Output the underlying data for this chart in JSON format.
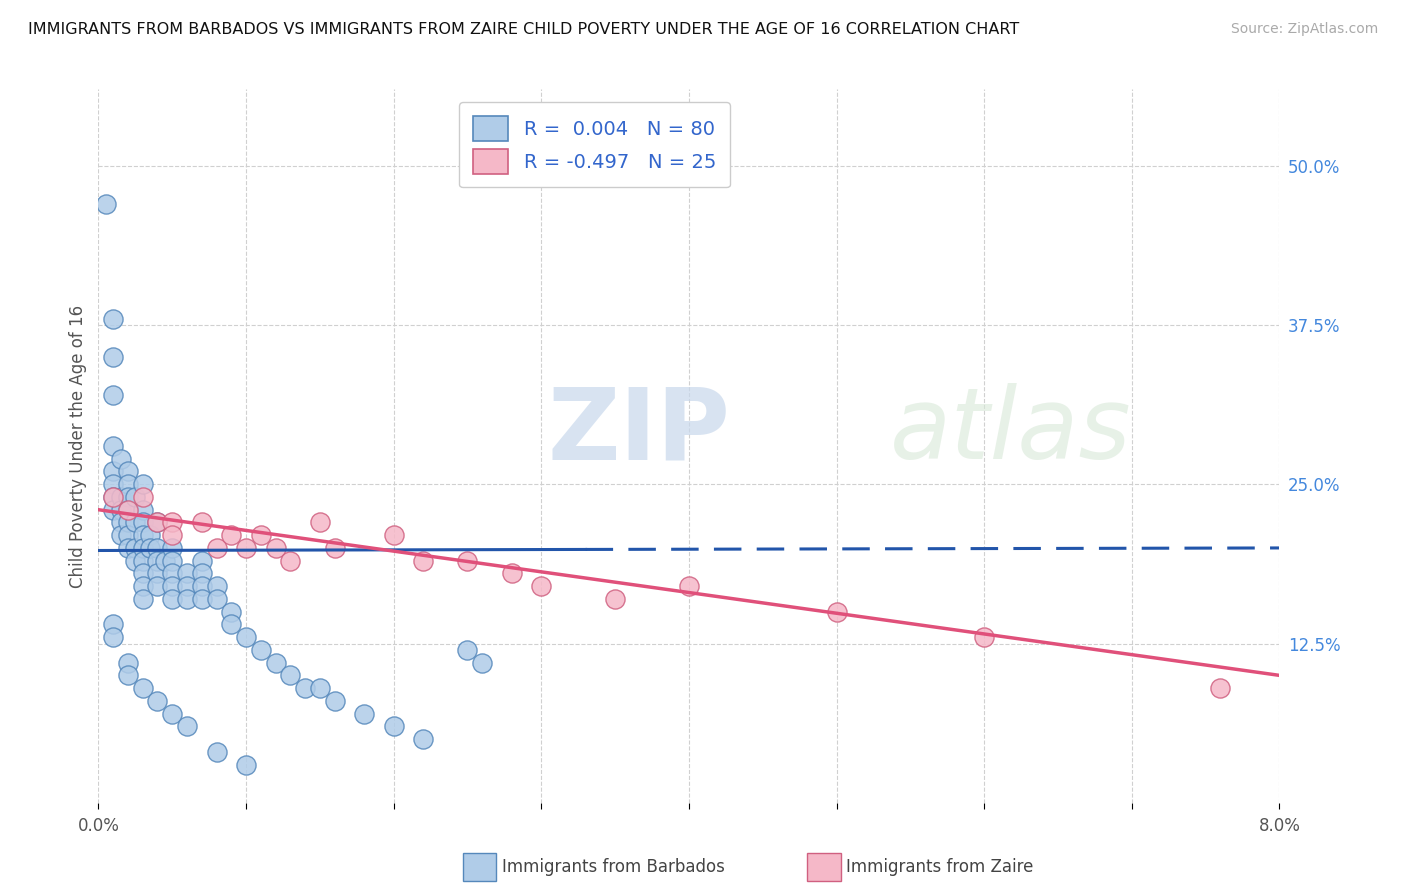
{
  "title": "IMMIGRANTS FROM BARBADOS VS IMMIGRANTS FROM ZAIRE CHILD POVERTY UNDER THE AGE OF 16 CORRELATION CHART",
  "source": "Source: ZipAtlas.com",
  "ylabel": "Child Poverty Under the Age of 16",
  "xlim": [
    0.0,
    0.08
  ],
  "ylim": [
    0.0,
    0.56
  ],
  "xtick_positions": [
    0.0,
    0.01,
    0.02,
    0.03,
    0.04,
    0.05,
    0.06,
    0.07,
    0.08
  ],
  "xticklabels": [
    "0.0%",
    "",
    "",
    "",
    "",
    "",
    "",
    "",
    "8.0%"
  ],
  "yticks_right": [
    0.125,
    0.25,
    0.375,
    0.5
  ],
  "yticks_right_labels": [
    "12.5%",
    "25.0%",
    "37.5%",
    "50.0%"
  ],
  "barbados_face": "#b0cce8",
  "barbados_edge": "#5588bb",
  "zaire_face": "#f5b8c8",
  "zaire_edge": "#d06080",
  "barbados_line": "#2255aa",
  "zaire_line": "#e0507a",
  "R_barbados": 0.004,
  "N_barbados": 80,
  "R_zaire": -0.497,
  "N_zaire": 25,
  "legend_barbados": "Immigrants from Barbados",
  "legend_zaire": "Immigrants from Zaire",
  "watermark_color": "#d8e4f0",
  "grid_color": "#d0d0d0",
  "title_color": "#111111",
  "source_color": "#aaaaaa",
  "right_tick_color": "#4488dd",
  "bottom_tick_color": "#555555",
  "barbados_x": [
    0.0005,
    0.001,
    0.001,
    0.001,
    0.001,
    0.001,
    0.001,
    0.001,
    0.001,
    0.0015,
    0.0015,
    0.0015,
    0.0015,
    0.0015,
    0.002,
    0.002,
    0.002,
    0.002,
    0.002,
    0.002,
    0.002,
    0.0025,
    0.0025,
    0.0025,
    0.0025,
    0.003,
    0.003,
    0.003,
    0.003,
    0.003,
    0.003,
    0.003,
    0.003,
    0.003,
    0.0035,
    0.0035,
    0.004,
    0.004,
    0.004,
    0.004,
    0.004,
    0.0045,
    0.005,
    0.005,
    0.005,
    0.005,
    0.005,
    0.006,
    0.006,
    0.006,
    0.007,
    0.007,
    0.007,
    0.007,
    0.008,
    0.008,
    0.009,
    0.009,
    0.01,
    0.011,
    0.012,
    0.013,
    0.014,
    0.015,
    0.016,
    0.018,
    0.02,
    0.022,
    0.025,
    0.026,
    0.001,
    0.001,
    0.002,
    0.002,
    0.003,
    0.004,
    0.005,
    0.006,
    0.008,
    0.01
  ],
  "barbados_y": [
    0.47,
    0.38,
    0.35,
    0.32,
    0.28,
    0.26,
    0.25,
    0.24,
    0.23,
    0.27,
    0.24,
    0.23,
    0.22,
    0.21,
    0.26,
    0.25,
    0.24,
    0.23,
    0.22,
    0.21,
    0.2,
    0.24,
    0.22,
    0.2,
    0.19,
    0.25,
    0.23,
    0.22,
    0.21,
    0.2,
    0.19,
    0.18,
    0.17,
    0.16,
    0.21,
    0.2,
    0.22,
    0.2,
    0.19,
    0.18,
    0.17,
    0.19,
    0.2,
    0.19,
    0.18,
    0.17,
    0.16,
    0.18,
    0.17,
    0.16,
    0.19,
    0.18,
    0.17,
    0.16,
    0.17,
    0.16,
    0.15,
    0.14,
    0.13,
    0.12,
    0.11,
    0.1,
    0.09,
    0.09,
    0.08,
    0.07,
    0.06,
    0.05,
    0.12,
    0.11,
    0.14,
    0.13,
    0.11,
    0.1,
    0.09,
    0.08,
    0.07,
    0.06,
    0.04,
    0.03
  ],
  "zaire_x": [
    0.001,
    0.002,
    0.003,
    0.004,
    0.005,
    0.005,
    0.007,
    0.008,
    0.009,
    0.01,
    0.011,
    0.012,
    0.013,
    0.015,
    0.016,
    0.02,
    0.022,
    0.025,
    0.028,
    0.03,
    0.035,
    0.04,
    0.05,
    0.06,
    0.076
  ],
  "zaire_y": [
    0.24,
    0.23,
    0.24,
    0.22,
    0.22,
    0.21,
    0.22,
    0.2,
    0.21,
    0.2,
    0.21,
    0.2,
    0.19,
    0.22,
    0.2,
    0.21,
    0.19,
    0.19,
    0.18,
    0.17,
    0.16,
    0.17,
    0.15,
    0.13,
    0.09
  ],
  "barbados_line_x": [
    0.0,
    0.08
  ],
  "barbados_line_y": [
    0.198,
    0.2
  ],
  "zaire_line_x": [
    0.0,
    0.08
  ],
  "zaire_line_y": [
    0.23,
    0.1
  ]
}
